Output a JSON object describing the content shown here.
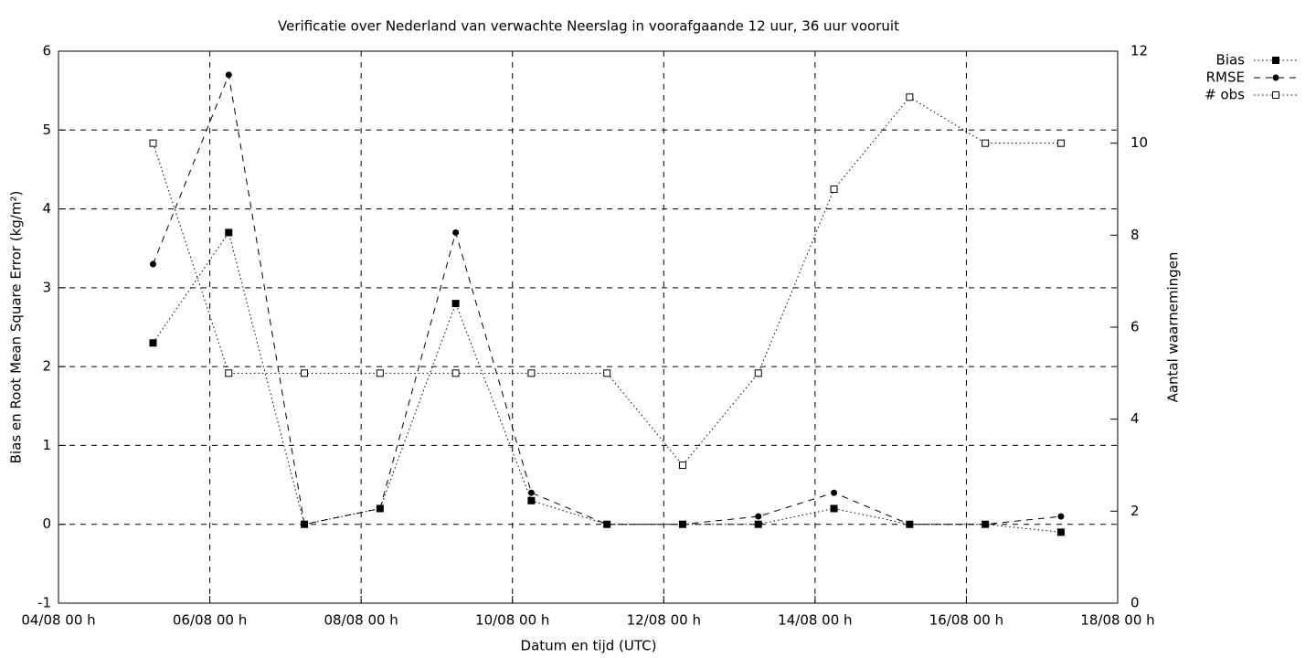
{
  "chart_data": {
    "type": "line",
    "title": "Verificatie over Nederland van verwachte Neerslag in voorafgaande 12 uur, 36 uur vooruit",
    "x_label": "Datum en tijd (UTC)",
    "y_label": "Bias en Root Mean Square Error (kg/m²)",
    "y2_label": "Aantal waarnemingen",
    "x": [
      "05/08 06 h",
      "06/08 06 h",
      "07/08 06 h",
      "08/08 06 h",
      "09/08 06 h",
      "10/08 06 h",
      "11/08 06 h",
      "12/08 06 h",
      "13/08 06 h",
      "14/08 06 h",
      "15/08 06 h",
      "16/08 06 h",
      "17/08 06 h"
    ],
    "xlim": [
      "04/08 00 h",
      "18/08 00 h"
    ],
    "xticks": [
      "04/08 00 h",
      "06/08 00 h",
      "08/08 00 h",
      "10/08 00 h",
      "12/08 00 h",
      "14/08 00 h",
      "16/08 00 h",
      "18/08 00 h"
    ],
    "ylim": [
      -1,
      6
    ],
    "yticks": [
      -1,
      0,
      1,
      2,
      3,
      4,
      5,
      6
    ],
    "y2lim": [
      0,
      12
    ],
    "y2ticks": [
      0,
      2,
      4,
      6,
      8,
      10,
      12
    ],
    "grid": true,
    "legend": "outside-top-right",
    "series": [
      {
        "name": "Bias",
        "color": "#000000",
        "marker": "filled-square",
        "dash": "dotted",
        "values": [
          2.3,
          3.7,
          0,
          0.2,
          2.8,
          0.3,
          0,
          0,
          0,
          0.2,
          0,
          0,
          -0.1
        ]
      },
      {
        "name": "RMSE",
        "color": "#000000",
        "marker": "circle",
        "dash": "dashed",
        "values": [
          3.3,
          5.7,
          0,
          0.2,
          3.7,
          0.4,
          0,
          0,
          0.1,
          0.4,
          0,
          0,
          0.1
        ]
      },
      {
        "name": "# obs",
        "color": "#000000",
        "marker": "open-square",
        "dash": "dotted",
        "axis": "y2",
        "values": [
          10,
          5,
          5,
          5,
          5,
          5,
          5,
          3,
          5,
          9,
          11,
          10,
          10
        ]
      }
    ]
  }
}
